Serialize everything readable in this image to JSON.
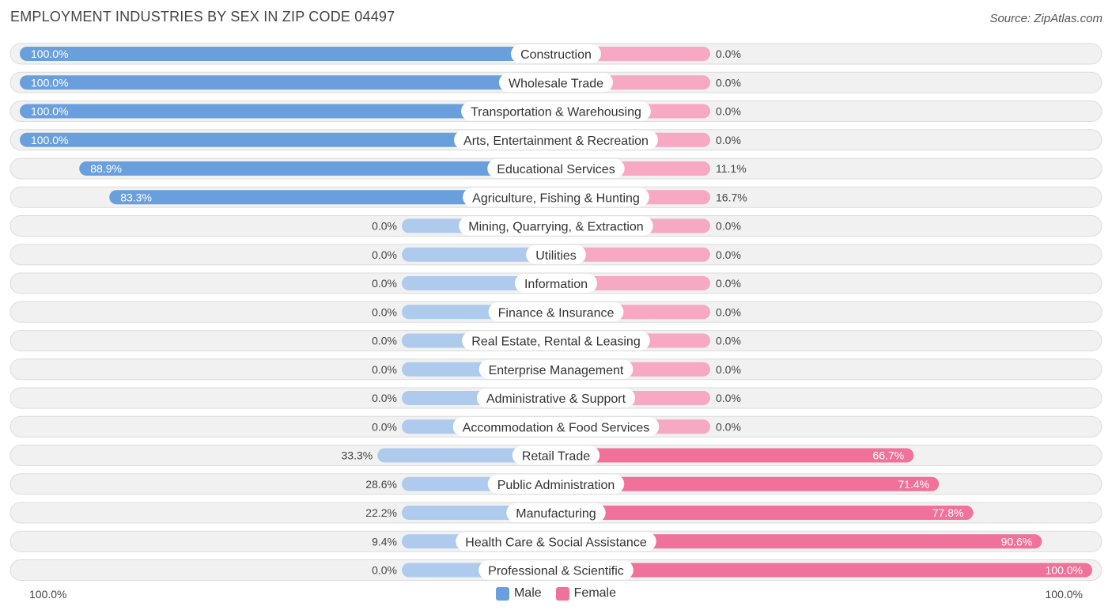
{
  "header": {
    "title": "EMPLOYMENT INDUSTRIES BY SEX IN ZIP CODE 04497",
    "source": "Source: ZipAtlas.com"
  },
  "axis": {
    "left_label": "100.0%",
    "right_label": "100.0%"
  },
  "legend": {
    "male_label": "Male",
    "female_label": "Female"
  },
  "colors": {
    "male_strong": "#6a9fde",
    "male_light": "#aecbee",
    "female_strong": "#f0719a",
    "female_light": "#f7a8c2"
  },
  "chart_data": {
    "type": "bar",
    "orientation": "horizontal-diverging",
    "title": "EMPLOYMENT INDUSTRIES BY SEX IN ZIP CODE 04497",
    "xlim": [
      -100,
      100
    ],
    "categories": [
      "Construction",
      "Wholesale Trade",
      "Transportation & Warehousing",
      "Arts, Entertainment & Recreation",
      "Educational Services",
      "Agriculture, Fishing & Hunting",
      "Mining, Quarrying, & Extraction",
      "Utilities",
      "Information",
      "Finance & Insurance",
      "Real Estate, Rental & Leasing",
      "Enterprise Management",
      "Administrative & Support",
      "Accommodation & Food Services",
      "Retail Trade",
      "Public Administration",
      "Manufacturing",
      "Health Care & Social Assistance",
      "Professional & Scientific"
    ],
    "series": [
      {
        "name": "Male",
        "values": [
          100.0,
          100.0,
          100.0,
          100.0,
          88.9,
          83.3,
          0.0,
          0.0,
          0.0,
          0.0,
          0.0,
          0.0,
          0.0,
          0.0,
          33.3,
          28.6,
          22.2,
          9.4,
          0.0
        ],
        "labels": [
          "100.0%",
          "100.0%",
          "100.0%",
          "100.0%",
          "88.9%",
          "83.3%",
          "0.0%",
          "0.0%",
          "0.0%",
          "0.0%",
          "0.0%",
          "0.0%",
          "0.0%",
          "0.0%",
          "33.3%",
          "28.6%",
          "22.2%",
          "9.4%",
          "0.0%"
        ]
      },
      {
        "name": "Female",
        "values": [
          0.0,
          0.0,
          0.0,
          0.0,
          11.1,
          16.7,
          0.0,
          0.0,
          0.0,
          0.0,
          0.0,
          0.0,
          0.0,
          0.0,
          66.7,
          71.4,
          77.8,
          90.6,
          100.0
        ],
        "labels": [
          "0.0%",
          "0.0%",
          "0.0%",
          "0.0%",
          "11.1%",
          "16.7%",
          "0.0%",
          "0.0%",
          "0.0%",
          "0.0%",
          "0.0%",
          "0.0%",
          "0.0%",
          "0.0%",
          "66.7%",
          "71.4%",
          "77.8%",
          "90.6%",
          "100.0%"
        ]
      }
    ]
  }
}
